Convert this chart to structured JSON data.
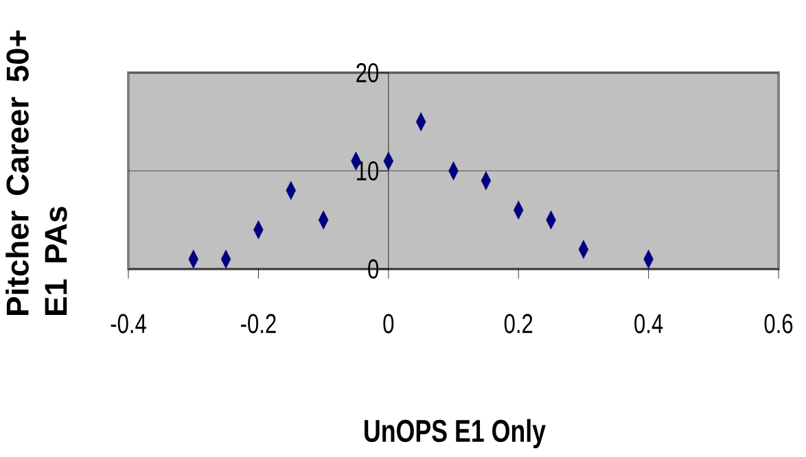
{
  "chart_data": {
    "type": "scatter",
    "xlabel": "UnOPS E1 Only",
    "ylabel": "Pitcher Career 50+ E1 PAs",
    "x": [
      -0.3,
      -0.25,
      -0.2,
      -0.15,
      -0.1,
      -0.05,
      0,
      0.05,
      0.1,
      0.15,
      0.2,
      0.25,
      0.3,
      0.4
    ],
    "series": [
      {
        "color": "#000080",
        "values": [
          1,
          1,
          4,
          8,
          5,
          11,
          11,
          15,
          10,
          9,
          6,
          5,
          2,
          1
        ]
      }
    ],
    "marker": "diamond",
    "grid": "y",
    "xlim": [
      -0.4,
      0.6
    ],
    "ylim": [
      0,
      20
    ],
    "xticks": [
      -0.4,
      -0.2,
      0,
      0.2,
      0.4,
      0.6
    ],
    "yticks": [
      0,
      10,
      20
    ]
  }
}
